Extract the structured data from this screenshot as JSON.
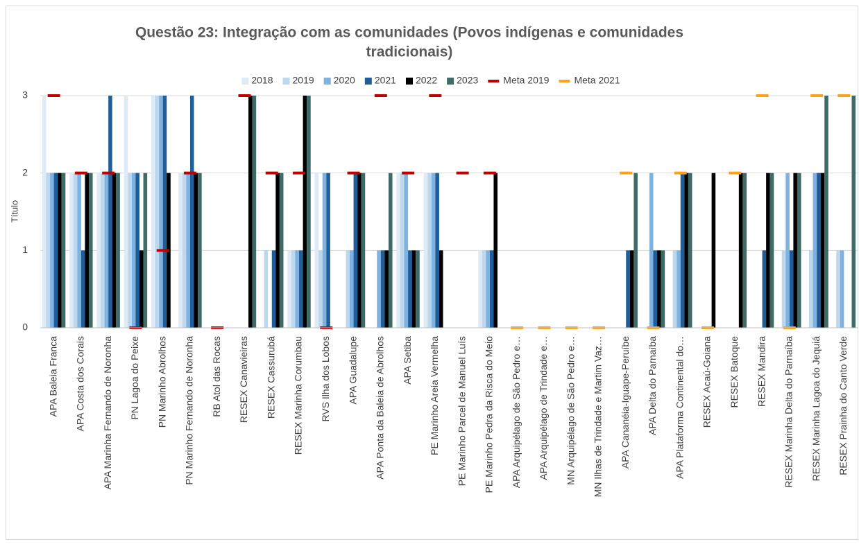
{
  "chart_data": {
    "type": "bar",
    "title": [
      "Questão 23: Integração com as comunidades (Povos indígenas e comunidades",
      "tradicionais)"
    ],
    "ylabel": "Título",
    "categories": [
      "APA Baleia Franca",
      "APA Costa dos Corais",
      "APA Marinha Fernando de Noronha",
      "PN Lagoa do Peixe",
      "PN Marinho Abrolhos",
      "PN Marinho Fernando de Noronha",
      "RB Atol das Rocas",
      "RESEX Canavieiras",
      "RESEX Cassurubá",
      "RESEX Marinha Corumbau",
      "RVS Ilha dos Lobos",
      "APA Guadalupe",
      "APA Ponta da Baleia de Abrolhos",
      "APA Setiba",
      "PE Marinho Areia Vermelha",
      "PE Marinho Parcel de Manuel Luís",
      "PE Marinho Pedra da Risca do Meio",
      "APA Arquipélago de São Pedro e…",
      "APA Arquipélago de Trindade e…",
      "MN Arquipélago de São Pedro e…",
      "MN Ilhas de Trindade e Martim Vaz…",
      "APA Cananéia-Iguape-Peruíbe",
      "APA Delta do Parnaíba",
      "APA Plataforma Continental do…",
      "RESEX Acaú-Goiana",
      "RESEX Batoque",
      "RESEX Mandira",
      "RESEX Marinha Delta do Parnaíba",
      "RESEX Marinha Lagoa do Jequiá",
      "RESEX Prainha do Canto Verde"
    ],
    "series": [
      {
        "name": "2018",
        "color": "#deebf7",
        "values": [
          3,
          2,
          2,
          3,
          3,
          2,
          null,
          null,
          null,
          1,
          2,
          null,
          null,
          2,
          2,
          null,
          1,
          null,
          null,
          null,
          null,
          null,
          null,
          null,
          null,
          null,
          null,
          null,
          null,
          null
        ]
      },
      {
        "name": "2019",
        "color": "#bdd7ee",
        "values": [
          2,
          2,
          2,
          2,
          3,
          2,
          null,
          null,
          1,
          1,
          1,
          1,
          null,
          2,
          2,
          null,
          1,
          null,
          null,
          null,
          null,
          null,
          null,
          1,
          null,
          null,
          null,
          1,
          1,
          1
        ]
      },
      {
        "name": "2020",
        "color": "#7fb2e0",
        "values": [
          2,
          2,
          2,
          2,
          3,
          2,
          null,
          null,
          null,
          1,
          2,
          1,
          1,
          2,
          2,
          null,
          1,
          null,
          null,
          null,
          null,
          null,
          2,
          1,
          null,
          null,
          null,
          2,
          2,
          1
        ]
      },
      {
        "name": "2021",
        "color": "#1f5e99",
        "values": [
          2,
          1,
          3,
          2,
          3,
          3,
          null,
          null,
          1,
          1,
          2,
          2,
          1,
          1,
          2,
          null,
          1,
          null,
          null,
          null,
          null,
          1,
          1,
          2,
          null,
          null,
          1,
          1,
          2,
          null
        ]
      },
      {
        "name": "2022",
        "color": "#000000",
        "values": [
          2,
          2,
          2,
          1,
          2,
          2,
          null,
          3,
          2,
          3,
          null,
          2,
          1,
          1,
          1,
          null,
          2,
          null,
          null,
          null,
          null,
          1,
          1,
          2,
          2,
          2,
          2,
          2,
          2,
          null
        ]
      },
      {
        "name": "2023",
        "color": "#3e6b66",
        "values": [
          2,
          2,
          2,
          2,
          null,
          2,
          null,
          3,
          2,
          3,
          null,
          2,
          2,
          1,
          null,
          null,
          null,
          null,
          null,
          null,
          null,
          2,
          1,
          2,
          null,
          2,
          2,
          2,
          3,
          3
        ]
      },
      {
        "name": "Meta 2019",
        "color": "#c00000",
        "type": "marker",
        "values": [
          3,
          2,
          2,
          0,
          1,
          2,
          0,
          3,
          2,
          2,
          0,
          2,
          3,
          2,
          3,
          2,
          2,
          null,
          null,
          null,
          null,
          null,
          null,
          null,
          null,
          null,
          null,
          null,
          null,
          null
        ]
      },
      {
        "name": "Meta 2021",
        "color": "#ffa21a",
        "type": "marker",
        "values": [
          null,
          null,
          null,
          null,
          null,
          null,
          null,
          null,
          null,
          null,
          null,
          null,
          null,
          null,
          null,
          null,
          null,
          0,
          0,
          0,
          0,
          2,
          0,
          2,
          0,
          2,
          3,
          0,
          3,
          3
        ]
      }
    ],
    "ylim": [
      0,
      3
    ],
    "yticks": [
      0,
      1,
      2,
      3
    ],
    "grid": true
  }
}
